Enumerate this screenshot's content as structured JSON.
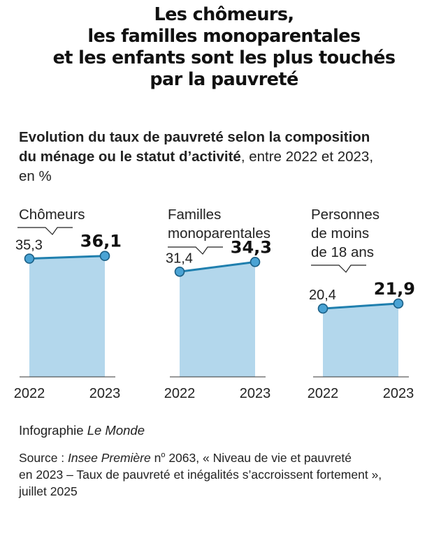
{
  "title": {
    "line1": "Les chômeurs,",
    "line2": "les familles monoparentales",
    "line3": "et les enfants sont les plus touchés",
    "line4": "par la pauvreté"
  },
  "subtitle": {
    "strong1": "Evolution du taux de pauvreté selon la composition",
    "strong2": "du ménage ou le statut d’activité",
    "rest2": ", entre 2022 et 2023,",
    "line3": "en %"
  },
  "chart_data": {
    "type": "area",
    "categories": [
      "2022",
      "2023"
    ],
    "panels": [
      {
        "label_lines": [
          "Chômeurs"
        ],
        "values": [
          35.3,
          36.1
        ],
        "value_labels": [
          "35,3",
          "36,1"
        ]
      },
      {
        "label_lines": [
          "Familles",
          "monoparentales"
        ],
        "values": [
          31.4,
          34.3
        ],
        "value_labels": [
          "31,4",
          "34,3"
        ]
      },
      {
        "label_lines": [
          "Personnes",
          "de moins",
          "de 18 ans"
        ],
        "values": [
          20.4,
          21.9
        ],
        "value_labels": [
          "20,4",
          "21,9"
        ]
      }
    ],
    "colors": {
      "area": "#b3d7ec",
      "line": "#1f7fae",
      "point_fill": "#4aa3d4",
      "point_stroke": "#1b5f85",
      "axis": "#333333"
    }
  },
  "credit": {
    "prefix": "Infographie ",
    "brand": "Le Monde"
  },
  "source": {
    "prefix": "Source : ",
    "publication": "Insee Première",
    "number_prefix": " n",
    "number_sup": "o",
    "line1_rest": " 2063, « Niveau de vie et pauvreté",
    "line2": "en 2023 – Taux de pauvreté et inégalités s’accroissent fortement »,",
    "line3": "juillet 2025"
  }
}
